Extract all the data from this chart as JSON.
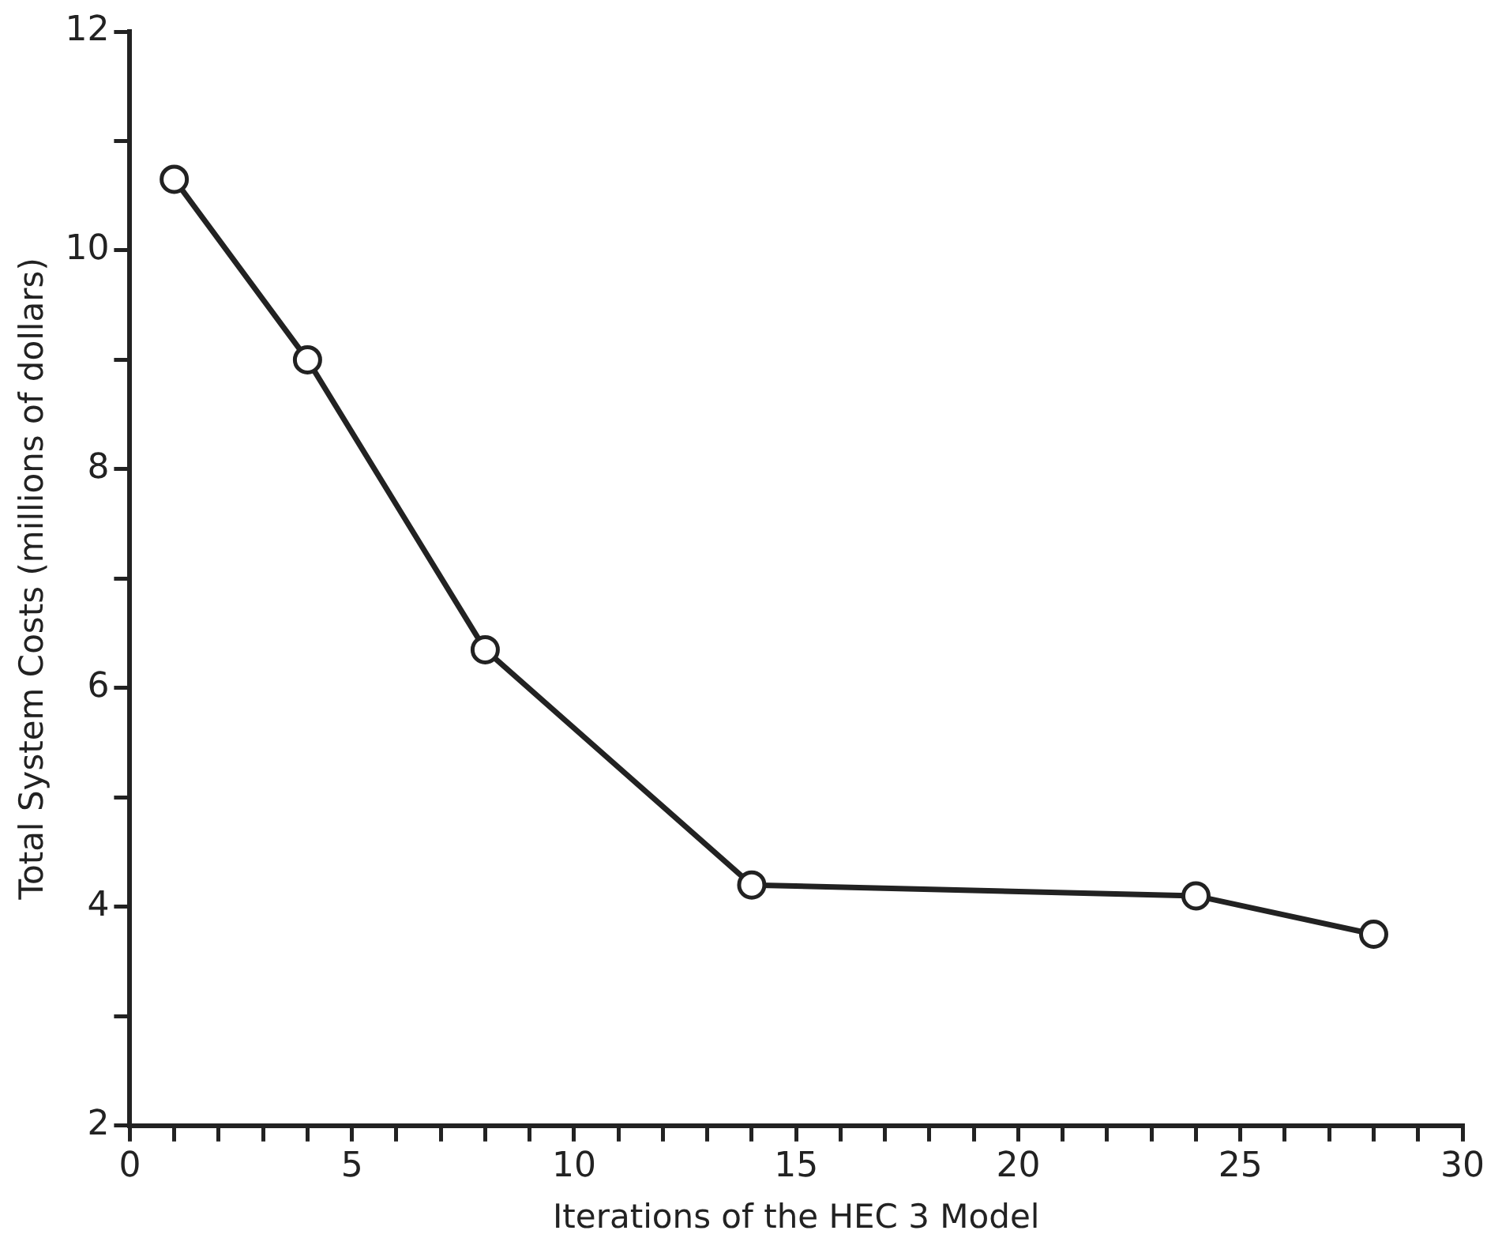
{
  "chart_data": {
    "type": "line",
    "xlabel": "Iterations of the HEC 3 Model",
    "ylabel": "Total System Costs (millions of dollars)",
    "x": [
      1,
      4,
      8,
      14,
      24,
      28
    ],
    "series": [
      {
        "color": "#222222",
        "values": [
          10.65,
          9.0,
          6.35,
          4.2,
          4.1,
          3.75
        ]
      }
    ],
    "xlim": [
      0,
      30
    ],
    "xticks": [
      0,
      {
        "value": 1,
        "label": null
      },
      {
        "value": 2,
        "label": null
      },
      {
        "value": 3,
        "label": null
      },
      {
        "value": 4,
        "label": null
      },
      5,
      {
        "value": 6,
        "label": null
      },
      {
        "value": 7,
        "label": null
      },
      {
        "value": 8,
        "label": null
      },
      {
        "value": 9,
        "label": null
      },
      10,
      {
        "value": 11,
        "label": null
      },
      {
        "value": 12,
        "label": null
      },
      {
        "value": 13,
        "label": null
      },
      {
        "value": 14,
        "label": null
      },
      15,
      {
        "value": 16,
        "label": null
      },
      {
        "value": 17,
        "label": null
      },
      {
        "value": 18,
        "label": null
      },
      {
        "value": 19,
        "label": null
      },
      20,
      {
        "value": 21,
        "label": null
      },
      {
        "value": 22,
        "label": null
      },
      {
        "value": 23,
        "label": null
      },
      {
        "value": 24,
        "label": null
      },
      25,
      {
        "value": 26,
        "label": null
      },
      {
        "value": 27,
        "label": null
      },
      {
        "value": 28,
        "label": null
      },
      {
        "value": 29,
        "label": null
      },
      30
    ],
    "ylim": [
      2,
      12
    ],
    "yticks": [
      2,
      {
        "value": 3,
        "label": null
      },
      4,
      {
        "value": 5,
        "label": null
      },
      6,
      {
        "value": 7,
        "label": null
      },
      8,
      {
        "value": 9,
        "label": null
      },
      10,
      {
        "value": 11,
        "label": null
      },
      12
    ],
    "grid": false,
    "legend": false,
    "marker": "circle",
    "line_style": "solid"
  }
}
